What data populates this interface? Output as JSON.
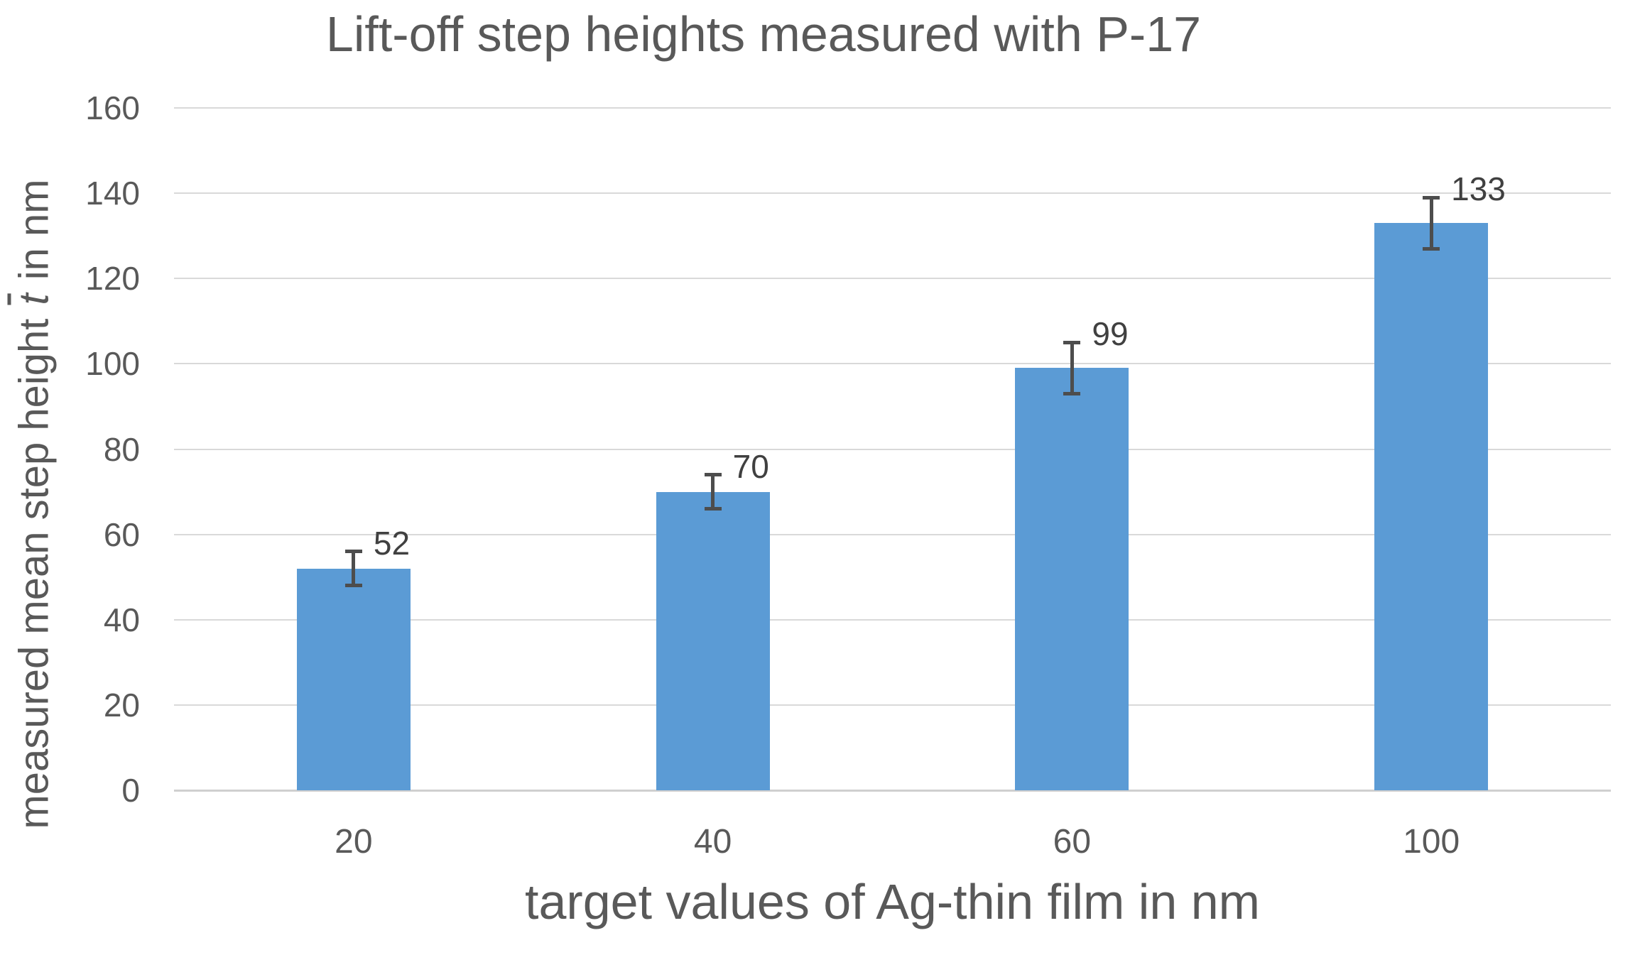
{
  "chart_data": {
    "type": "bar",
    "title": "Lift-off step heights measured with P-17",
    "xlabel": "target values of Ag-thin film in nm",
    "ylabel": "measured mean step height t̄ in nm",
    "ylabel_parts": {
      "before": "measured mean step height ",
      "symbol": "t",
      "after": " in nm"
    },
    "categories": [
      "20",
      "40",
      "60",
      "100"
    ],
    "values": [
      52,
      70,
      99,
      133
    ],
    "data_labels": [
      "52",
      "70",
      "99",
      "133"
    ],
    "error_bars_plus_minus": [
      4,
      4,
      6,
      6
    ],
    "ylim": [
      0,
      160
    ],
    "ytick_interval": 20,
    "ytick_labels": [
      "0",
      "20",
      "40",
      "60",
      "80",
      "100",
      "120",
      "140",
      "160"
    ],
    "grid": "horizontal",
    "legend": "none",
    "bar_color": "#5B9BD5",
    "gridline_color": "#D9D9D9",
    "zero_line_color": "#CFCFCF",
    "text_color": "#595959",
    "data_label_color": "#404040",
    "error_bar_color": "#4D4D4D"
  }
}
